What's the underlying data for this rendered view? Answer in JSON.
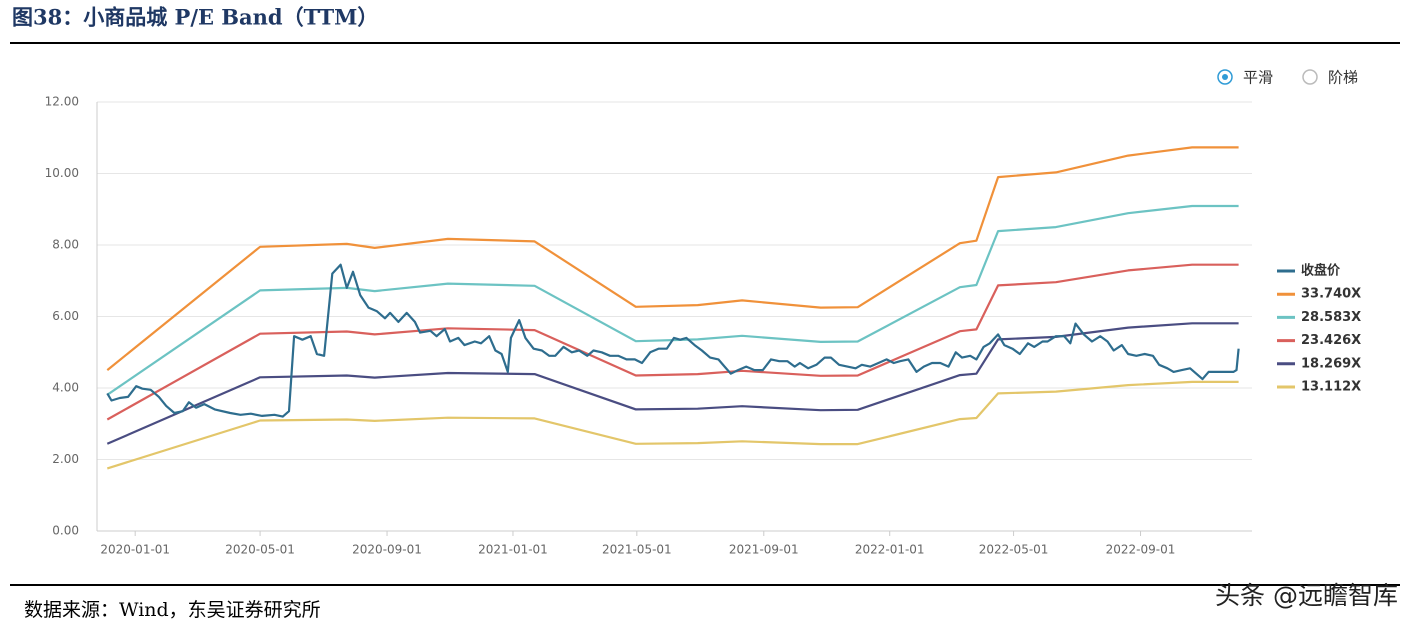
{
  "header": {
    "title": "图38：小商品城 P/E Band（TTM）"
  },
  "options": [
    "平滑",
    "阶梯"
  ],
  "chart_data": {
    "type": "line",
    "xlim": [
      "2019-11-25",
      "2022-12-18"
    ],
    "xticks": [
      "2020-01-01",
      "2020-05-01",
      "2020-09-01",
      "2021-01-01",
      "2021-05-01",
      "2021-09-01",
      "2022-01-01",
      "2022-05-01",
      "2022-09-01"
    ],
    "ylim": [
      0,
      12
    ],
    "yticks": [
      {
        "value": 0,
        "label": "0.00"
      },
      {
        "value": 2,
        "label": "2.00"
      },
      {
        "value": 4,
        "label": "4.00"
      },
      {
        "value": 6,
        "label": "6.00"
      },
      {
        "value": 8,
        "label": "8.00"
      },
      {
        "value": 10,
        "label": "10.00"
      },
      {
        "value": 12,
        "label": "12.00"
      }
    ],
    "grid": true,
    "legend": "right",
    "series": [
      {
        "name": "收盘价",
        "color": "#2e6d8e",
        "x": [
          "2019-12-05",
          "2019-12-09",
          "2019-12-17",
          "2019-12-25",
          "2020-01-02",
          "2020-01-08",
          "2020-01-16",
          "2020-01-24",
          "2020-01-31",
          "2020-02-08",
          "2020-02-16",
          "2020-02-22",
          "2020-02-29",
          "2020-03-08",
          "2020-03-18",
          "2020-04-02",
          "2020-04-12",
          "2020-04-22",
          "2020-05-03",
          "2020-05-15",
          "2020-05-23",
          "2020-05-29",
          "2020-06-03",
          "2020-06-11",
          "2020-06-19",
          "2020-06-25",
          "2020-07-02",
          "2020-07-10",
          "2020-07-18",
          "2020-07-24",
          "2020-07-30",
          "2020-08-06",
          "2020-08-14",
          "2020-08-22",
          "2020-08-30",
          "2020-09-04",
          "2020-09-12",
          "2020-09-20",
          "2020-09-28",
          "2020-10-03",
          "2020-10-13",
          "2020-10-19",
          "2020-10-27",
          "2020-11-01",
          "2020-11-09",
          "2020-11-15",
          "2020-11-25",
          "2020-12-01",
          "2020-12-09",
          "2020-12-15",
          "2020-12-21",
          "2020-12-27",
          "2020-12-30",
          "2021-01-07",
          "2021-01-13",
          "2021-01-21",
          "2021-01-29",
          "2021-02-05",
          "2021-02-11",
          "2021-02-19",
          "2021-02-27",
          "2021-03-06",
          "2021-03-14",
          "2021-03-20",
          "2021-03-28",
          "2021-04-05",
          "2021-04-13",
          "2021-04-21",
          "2021-04-29",
          "2021-05-06",
          "2021-05-14",
          "2021-05-22",
          "2021-05-30",
          "2021-06-06",
          "2021-06-12",
          "2021-06-18",
          "2021-06-26",
          "2021-07-03",
          "2021-07-11",
          "2021-07-19",
          "2021-07-25",
          "2021-07-31",
          "2021-08-07",
          "2021-08-15",
          "2021-08-23",
          "2021-08-31",
          "2021-09-08",
          "2021-09-16",
          "2021-09-24",
          "2021-10-01",
          "2021-10-06",
          "2021-10-14",
          "2021-10-22",
          "2021-10-30",
          "2021-11-05",
          "2021-11-13",
          "2021-11-21",
          "2021-11-29",
          "2021-12-05",
          "2021-12-13",
          "2021-12-21",
          "2021-12-29",
          "2022-01-05",
          "2022-01-11",
          "2022-01-19",
          "2022-01-27",
          "2022-02-03",
          "2022-02-11",
          "2022-02-19",
          "2022-02-27",
          "2022-03-06",
          "2022-03-12",
          "2022-03-20",
          "2022-03-26",
          "2022-04-02",
          "2022-04-08",
          "2022-04-16",
          "2022-04-22",
          "2022-04-30",
          "2022-05-07",
          "2022-05-15",
          "2022-05-21",
          "2022-05-29",
          "2022-06-03",
          "2022-06-11",
          "2022-06-19",
          "2022-06-25",
          "2022-06-30",
          "2022-07-08",
          "2022-07-16",
          "2022-07-24",
          "2022-07-31",
          "2022-08-06",
          "2022-08-14",
          "2022-08-20",
          "2022-08-28",
          "2022-09-05",
          "2022-09-13",
          "2022-09-19",
          "2022-09-27",
          "2022-10-03",
          "2022-10-11",
          "2022-10-19",
          "2022-10-25",
          "2022-10-31",
          "2022-11-06",
          "2022-11-14",
          "2022-11-22",
          "2022-11-30",
          "2022-12-03",
          "2022-12-05"
        ],
        "values": [
          3.85,
          3.65,
          3.72,
          3.75,
          4.05,
          3.98,
          3.95,
          3.75,
          3.5,
          3.3,
          3.35,
          3.6,
          3.45,
          3.55,
          3.4,
          3.3,
          3.25,
          3.28,
          3.22,
          3.25,
          3.2,
          3.35,
          5.45,
          5.35,
          5.45,
          4.95,
          4.9,
          7.2,
          7.45,
          6.8,
          7.25,
          6.6,
          6.25,
          6.15,
          5.95,
          6.1,
          5.85,
          6.1,
          5.85,
          5.55,
          5.6,
          5.45,
          5.65,
          5.3,
          5.4,
          5.2,
          5.3,
          5.25,
          5.45,
          5.05,
          4.95,
          4.45,
          5.4,
          5.9,
          5.4,
          5.1,
          5.05,
          4.9,
          4.9,
          5.15,
          5.0,
          5.05,
          4.9,
          5.05,
          5.0,
          4.9,
          4.9,
          4.8,
          4.8,
          4.7,
          5.0,
          5.1,
          5.1,
          5.4,
          5.35,
          5.4,
          5.2,
          5.05,
          4.85,
          4.8,
          4.6,
          4.4,
          4.5,
          4.6,
          4.5,
          4.5,
          4.8,
          4.75,
          4.75,
          4.6,
          4.7,
          4.55,
          4.65,
          4.85,
          4.85,
          4.65,
          4.6,
          4.55,
          4.65,
          4.6,
          4.7,
          4.8,
          4.7,
          4.75,
          4.8,
          4.45,
          4.6,
          4.7,
          4.7,
          4.6,
          5.0,
          4.85,
          4.9,
          4.8,
          5.15,
          5.25,
          5.5,
          5.2,
          5.1,
          4.95,
          5.25,
          5.15,
          5.3,
          5.3,
          5.45,
          5.45,
          5.25,
          5.8,
          5.5,
          5.3,
          5.45,
          5.3,
          5.05,
          5.2,
          4.95,
          4.9,
          4.95,
          4.9,
          4.65,
          4.55,
          4.45,
          4.5,
          4.55,
          4.4,
          4.25,
          4.45,
          4.45,
          4.45,
          4.45,
          4.5,
          5.1
        ]
      },
      {
        "name": "33.740X",
        "color": "#f0913a",
        "x": [
          "2019-12-05",
          "2020-05-01",
          "2020-07-24",
          "2020-08-20",
          "2020-10-30",
          "2021-01-22",
          "2021-04-30",
          "2021-06-29",
          "2021-08-11",
          "2021-10-26",
          "2021-12-01",
          "2022-03-10",
          "2022-03-26",
          "2022-04-16",
          "2022-06-11",
          "2022-08-20",
          "2022-10-21",
          "2022-12-05"
        ],
        "values": [
          4.5,
          7.95,
          8.03,
          7.92,
          8.17,
          8.1,
          6.27,
          6.32,
          6.45,
          6.25,
          6.26,
          8.05,
          8.12,
          9.9,
          10.03,
          10.5,
          10.73,
          10.73
        ]
      },
      {
        "name": "28.583X",
        "color": "#6cc3c3",
        "x": [
          "2019-12-05",
          "2020-05-01",
          "2020-07-24",
          "2020-08-20",
          "2020-10-30",
          "2021-01-22",
          "2021-04-30",
          "2021-06-29",
          "2021-08-11",
          "2021-10-26",
          "2021-12-01",
          "2022-03-10",
          "2022-03-26",
          "2022-04-16",
          "2022-06-11",
          "2022-08-20",
          "2022-10-21",
          "2022-12-05"
        ],
        "values": [
          3.81,
          6.73,
          6.8,
          6.71,
          6.92,
          6.86,
          5.31,
          5.36,
          5.46,
          5.29,
          5.3,
          6.82,
          6.88,
          8.39,
          8.5,
          8.89,
          9.09,
          9.09
        ]
      },
      {
        "name": "23.426X",
        "color": "#d9605c",
        "x": [
          "2019-12-05",
          "2020-05-01",
          "2020-07-24",
          "2020-08-20",
          "2020-10-30",
          "2021-01-22",
          "2021-04-30",
          "2021-06-29",
          "2021-08-11",
          "2021-10-26",
          "2021-12-01",
          "2022-03-10",
          "2022-03-26",
          "2022-04-16",
          "2022-06-11",
          "2022-08-20",
          "2022-10-21",
          "2022-12-05"
        ],
        "values": [
          3.12,
          5.52,
          5.58,
          5.5,
          5.67,
          5.62,
          4.35,
          4.39,
          4.48,
          4.34,
          4.35,
          5.59,
          5.64,
          6.87,
          6.96,
          7.29,
          7.45,
          7.45
        ]
      },
      {
        "name": "18.269X",
        "color": "#4a4d82",
        "x": [
          "2019-12-05",
          "2020-05-01",
          "2020-07-24",
          "2020-08-20",
          "2020-10-30",
          "2021-01-22",
          "2021-04-30",
          "2021-06-29",
          "2021-08-11",
          "2021-10-26",
          "2021-12-01",
          "2022-03-10",
          "2022-03-26",
          "2022-04-16",
          "2022-06-11",
          "2022-08-20",
          "2022-10-21",
          "2022-12-05"
        ],
        "values": [
          2.44,
          4.3,
          4.35,
          4.29,
          4.42,
          4.39,
          3.4,
          3.42,
          3.49,
          3.38,
          3.39,
          4.36,
          4.4,
          5.36,
          5.43,
          5.69,
          5.81,
          5.81
        ]
      },
      {
        "name": "13.112X",
        "color": "#e3c66a",
        "x": [
          "2019-12-05",
          "2020-05-01",
          "2020-07-24",
          "2020-08-20",
          "2020-10-30",
          "2021-01-22",
          "2021-04-30",
          "2021-06-29",
          "2021-08-11",
          "2021-10-26",
          "2021-12-01",
          "2022-03-10",
          "2022-03-26",
          "2022-04-16",
          "2022-06-11",
          "2022-08-20",
          "2022-10-21",
          "2022-12-05"
        ],
        "values": [
          1.75,
          3.09,
          3.12,
          3.08,
          3.17,
          3.15,
          2.44,
          2.46,
          2.51,
          2.43,
          2.43,
          3.13,
          3.16,
          3.85,
          3.9,
          4.08,
          4.17,
          4.17
        ]
      }
    ]
  },
  "footer": {
    "source": "数据来源：Wind，东吴证券研究所",
    "watermark": "头条 @远瞻智库"
  }
}
